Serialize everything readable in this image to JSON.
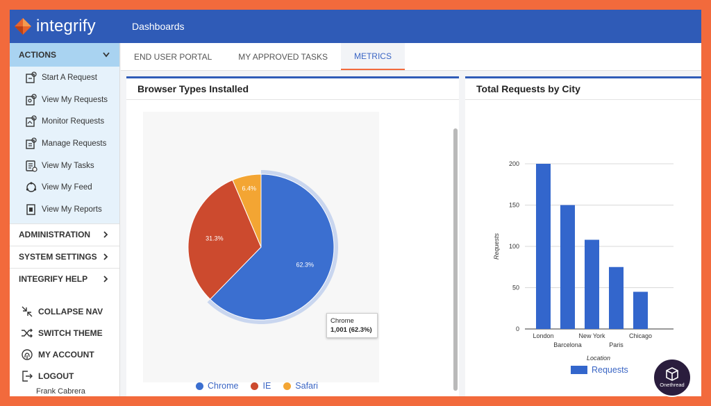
{
  "app": {
    "brand": "integrify",
    "breadcrumb": "Dashboards"
  },
  "sidebar": {
    "actions_label": "ACTIONS",
    "actions": [
      {
        "label": "Start A Request",
        "icon": "start-request-icon"
      },
      {
        "label": "View My Requests",
        "icon": "view-requests-icon"
      },
      {
        "label": "Monitor Requests",
        "icon": "monitor-requests-icon"
      },
      {
        "label": "Manage Requests",
        "icon": "manage-requests-icon"
      },
      {
        "label": "View My Tasks",
        "icon": "tasks-icon"
      },
      {
        "label": "View My Feed",
        "icon": "feed-icon"
      },
      {
        "label": "View My Reports",
        "icon": "reports-icon"
      }
    ],
    "sections": [
      "ADMINISTRATION",
      "SYSTEM SETTINGS",
      "INTEGRIFY HELP"
    ],
    "bottom": [
      {
        "label": "COLLAPSE NAV",
        "icon": "collapse-icon"
      },
      {
        "label": "SWITCH THEME",
        "icon": "shuffle-icon"
      },
      {
        "label": "MY ACCOUNT",
        "icon": "fingerprint-icon"
      },
      {
        "label": "LOGOUT",
        "icon": "logout-icon"
      }
    ],
    "user_name": "Frank Cabrera"
  },
  "tabs": [
    {
      "label": "END USER PORTAL",
      "active": false
    },
    {
      "label": "MY APPROVED TASKS",
      "active": false
    },
    {
      "label": "METRICS",
      "active": true
    }
  ],
  "panels": {
    "browser_title": "Browser Types Installed",
    "city_title": "Total Requests by City"
  },
  "tooltip": {
    "label": "Chrome",
    "value": "1,001 (62.3%)"
  },
  "badge": {
    "text": "Onethread"
  },
  "colors": {
    "chrome": "#3b6fd0",
    "ie": "#cc4a2e",
    "safari": "#f3a533",
    "bar": "#3366cc",
    "accent": "#f26a3c"
  },
  "chart_data": [
    {
      "type": "pie",
      "title": "Browser Types Installed",
      "slices": [
        {
          "name": "Chrome",
          "value": 62.3,
          "label": "62.3%"
        },
        {
          "name": "IE",
          "value": 31.3,
          "label": "31.3%"
        },
        {
          "name": "Safari",
          "value": 6.4,
          "label": "6.4%"
        }
      ],
      "legend": "bottom"
    },
    {
      "type": "bar",
      "title": "Total Requests by City",
      "categories": [
        "London",
        "Barcelona",
        "New York",
        "Paris",
        "Chicago"
      ],
      "values": [
        200,
        150,
        108,
        75,
        45
      ],
      "xlabel": "Location",
      "ylabel": "Requests",
      "ylim": [
        0,
        200
      ],
      "yticks": [
        0,
        50,
        100,
        150,
        200
      ],
      "series_name": "Requests",
      "legend": "bottom"
    }
  ]
}
